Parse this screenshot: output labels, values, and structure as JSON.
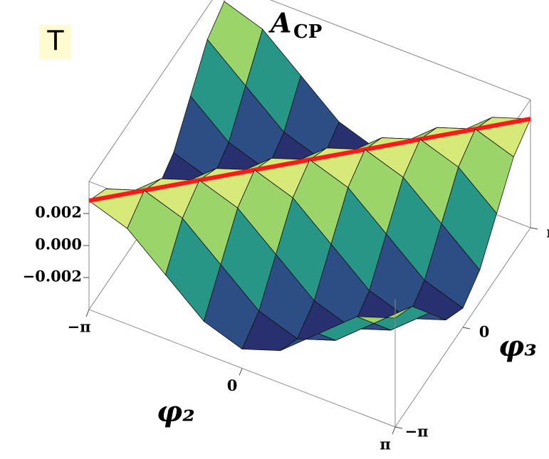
{
  "panel_label": "T",
  "chart_data": {
    "type": "surface",
    "title": {
      "text": "A",
      "subscript": "CP"
    },
    "xlabel": "φ₂",
    "ylabel": "φ₃",
    "x": [
      -3.1416,
      -2.3562,
      -1.5708,
      -0.7854,
      0,
      0.7854,
      1.5708,
      2.3562,
      3.1416
    ],
    "y": [
      -3.1416,
      -2.3562,
      -1.5708,
      -0.7854,
      0,
      0.7854,
      1.5708,
      2.3562,
      3.1416
    ],
    "z": [
      [
        0.0028,
        0.00198,
        0,
        -0.00198,
        -0.0028,
        -0.00198,
        0,
        0.00198,
        0.0028
      ],
      [
        0.00198,
        0.0028,
        0.00198,
        0,
        -0.00198,
        -0.0028,
        -0.00198,
        0,
        0.00198
      ],
      [
        0,
        0.00198,
        0.0028,
        0.00198,
        0,
        -0.00198,
        -0.0028,
        -0.00198,
        0
      ],
      [
        -0.00198,
        0,
        0.00198,
        0.0028,
        0.00198,
        0,
        -0.00198,
        -0.0028,
        -0.00198
      ],
      [
        -0.0028,
        -0.00198,
        0,
        0.00198,
        0.0028,
        0.00198,
        0,
        -0.00198,
        -0.0028
      ],
      [
        -0.00198,
        -0.0028,
        -0.00198,
        0,
        0.00198,
        0.0028,
        0.00198,
        0,
        -0.00198
      ],
      [
        0,
        -0.00198,
        -0.0028,
        -0.00198,
        0,
        0.00198,
        0.0028,
        0.00198,
        0
      ],
      [
        0.00198,
        0,
        -0.00198,
        -0.0028,
        -0.00198,
        0,
        0.00198,
        0.0028,
        0.00198
      ],
      [
        0.0028,
        0.00198,
        0,
        -0.00198,
        -0.0028,
        -0.00198,
        0,
        0.00198,
        0.0028
      ]
    ],
    "xlim": [
      -3.1416,
      3.1416
    ],
    "ylim": [
      -3.1416,
      3.1416
    ],
    "zlim": [
      -0.004,
      0.004
    ],
    "xticks": [
      {
        "value": -3.1416,
        "label": "−π"
      },
      0,
      {
        "value": 3.1416,
        "label": "π"
      }
    ],
    "yticks": [
      {
        "value": -3.1416,
        "label": "−π"
      },
      0,
      {
        "value": 3.1416,
        "label": "π"
      }
    ],
    "zticks": [
      0.002,
      {
        "value": 0,
        "label": "0.000"
      },
      {
        "value": -0.002,
        "label": "−0.002"
      }
    ],
    "ridge_color": "#ff1a1a",
    "mesh_color": "#111111"
  }
}
